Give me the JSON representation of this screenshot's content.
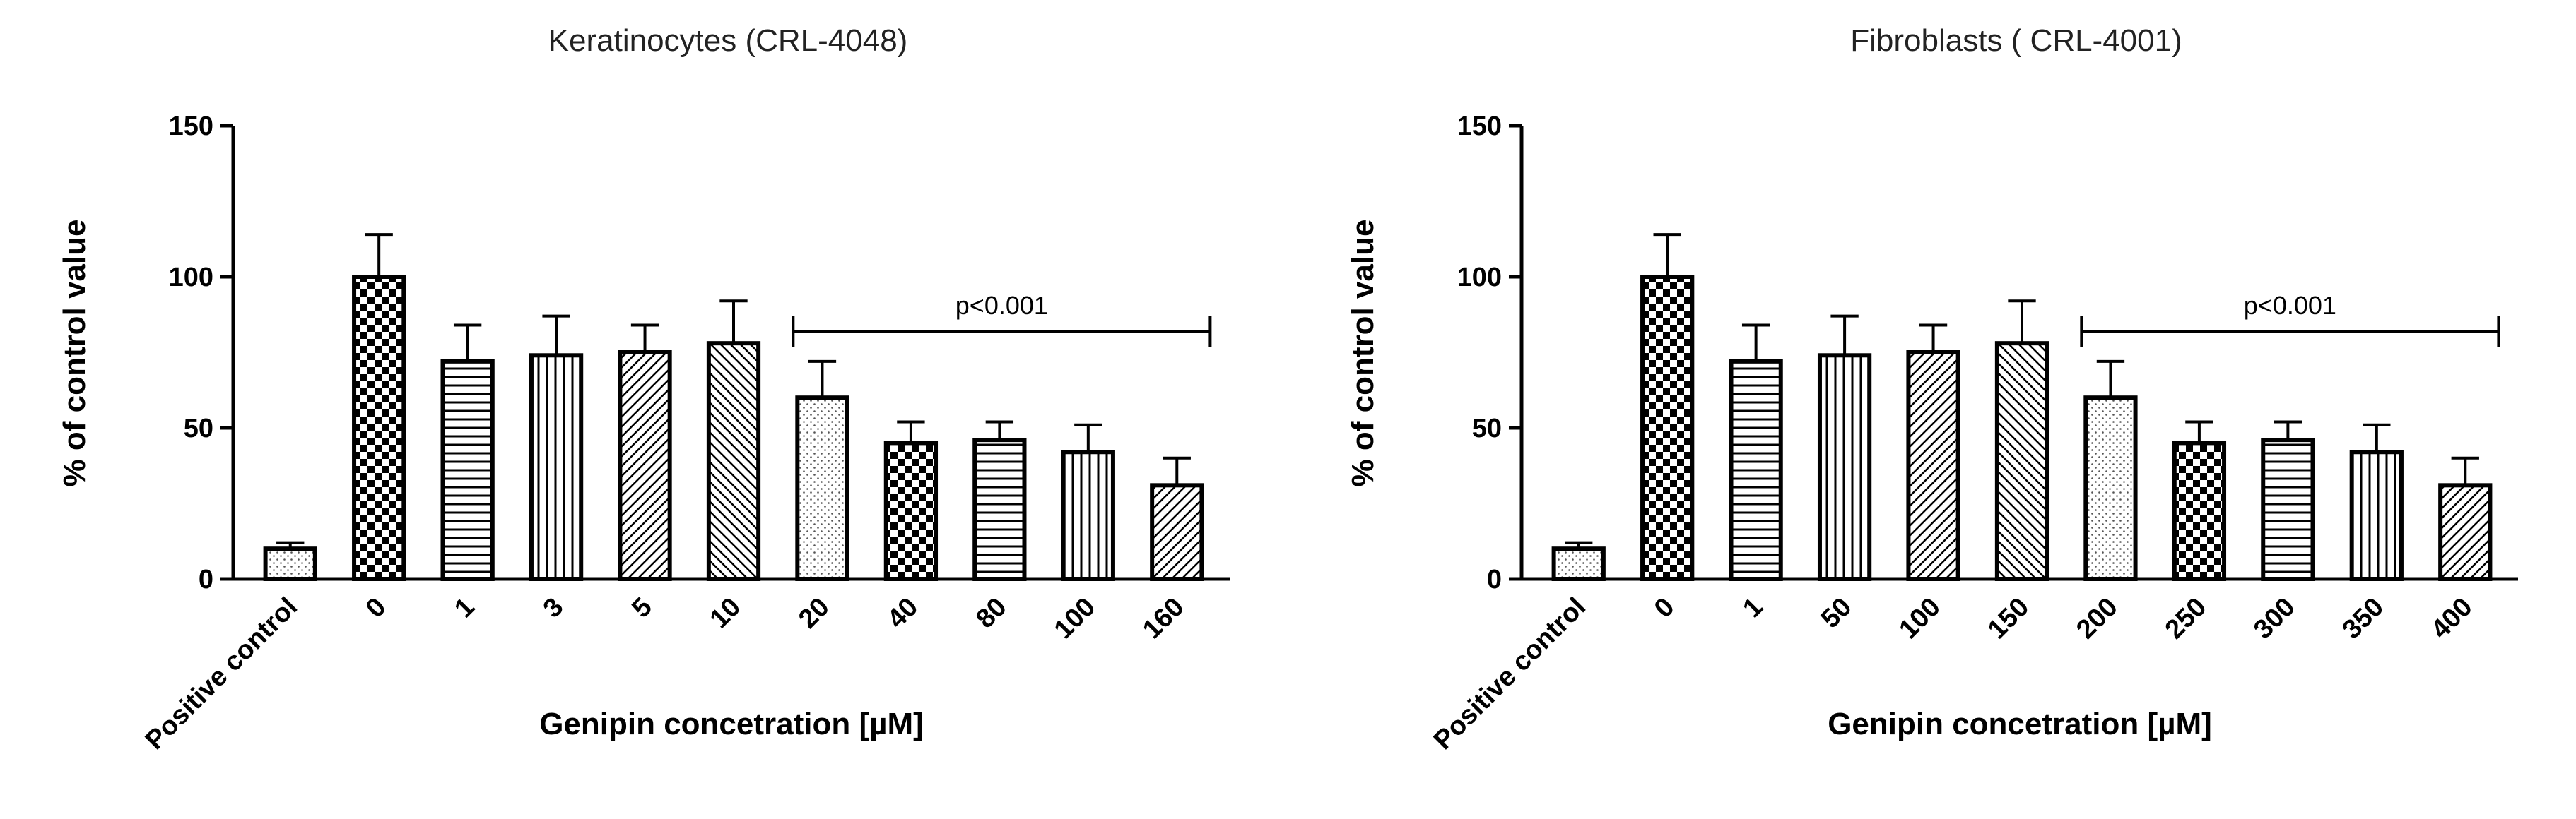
{
  "chart_data": [
    {
      "type": "bar",
      "title": "Keratinocytes (CRL-4048)",
      "xlabel": "Genipin concetration [µM]",
      "ylabel": "% of control value",
      "ylim": [
        0,
        150
      ],
      "yticks": [
        "0",
        "50",
        "100",
        "150"
      ],
      "categories": [
        "Positive control",
        "0",
        "1",
        "3",
        "5",
        "10",
        "20",
        "40",
        "80",
        "100",
        "160"
      ],
      "values": [
        10,
        100,
        72,
        74,
        75,
        78,
        60,
        45,
        46,
        42,
        31
      ],
      "errors": [
        2,
        14,
        12,
        13,
        9,
        14,
        12,
        7,
        6,
        9,
        9
      ],
      "patterns": [
        "dots",
        "checker",
        "hlines",
        "vlines",
        "diag-right",
        "diag-left",
        "dots",
        "checker",
        "hlines",
        "vlines",
        "diag-right"
      ],
      "significance": {
        "label": "p<0.001",
        "from_category": "20",
        "to_category": "160",
        "y": 82
      },
      "grid": false,
      "legend": "none"
    },
    {
      "type": "bar",
      "title": "Fibroblasts ( CRL-4001)",
      "xlabel": "Genipin concetration [µM]",
      "ylabel": "% of control value",
      "ylim": [
        0,
        150
      ],
      "yticks": [
        "0",
        "50",
        "100",
        "150"
      ],
      "categories": [
        "Positive control",
        "0",
        "1",
        "50",
        "100",
        "150",
        "200",
        "250",
        "300",
        "350",
        "400"
      ],
      "values": [
        10,
        100,
        72,
        74,
        75,
        78,
        60,
        45,
        46,
        42,
        31
      ],
      "errors": [
        2,
        14,
        12,
        13,
        9,
        14,
        12,
        7,
        6,
        9,
        9
      ],
      "patterns": [
        "dots",
        "checker",
        "hlines",
        "vlines",
        "diag-right",
        "diag-left",
        "dots",
        "checker",
        "hlines",
        "vlines",
        "diag-right"
      ],
      "significance": {
        "label": "p<0.001",
        "from_category": "200",
        "to_category": "400",
        "y": 82
      },
      "grid": false,
      "legend": "none"
    }
  ]
}
